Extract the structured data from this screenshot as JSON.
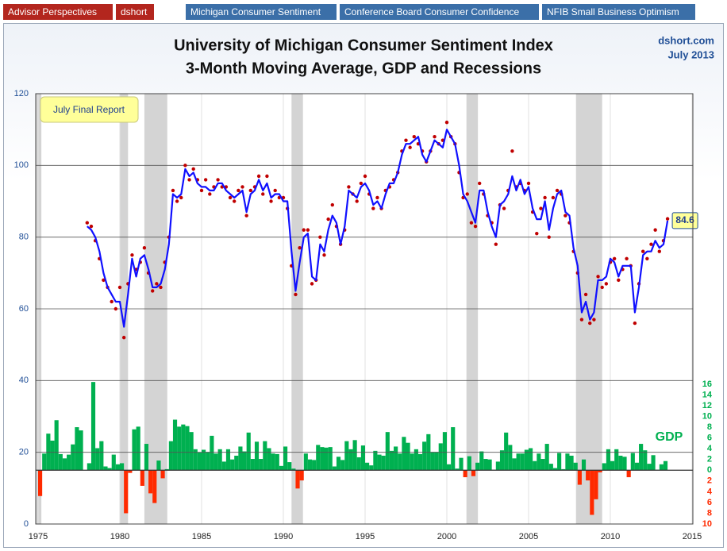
{
  "nav": [
    "Advisor Perspectives",
    "dshort",
    "Michigan Consumer Sentiment",
    "Conference Board Consumer Confidence",
    "NFIB Small Business Optimism"
  ],
  "chart_data": {
    "type": "line",
    "title": "University of Michigan Consumer Sentiment Index",
    "subtitle": "3-Month Moving Average, GDP and Recessions",
    "source": "dshort.com",
    "date": "July 2013",
    "annotation": "July Final Report",
    "xlim": [
      1975,
      2015
    ],
    "xticks": [
      1975,
      1980,
      1985,
      1990,
      1995,
      2000,
      2005,
      2010,
      2015
    ],
    "ylim": [
      0,
      120
    ],
    "yticks": [
      0,
      20,
      40,
      60,
      80,
      100,
      120
    ],
    "y2lim": [
      -10,
      70
    ],
    "y2ticks": [
      16,
      14,
      12,
      10,
      8,
      6,
      4,
      2,
      0,
      {
        "value": -2,
        "label": "2"
      },
      {
        "value": -4,
        "label": "4"
      },
      {
        "value": -6,
        "label": "6"
      },
      {
        "value": -8,
        "label": "8"
      },
      {
        "value": -10,
        "label": "10"
      }
    ],
    "grid": true,
    "recessions": [
      [
        1973.9,
        1975.2
      ],
      [
        1980.0,
        1980.5
      ],
      [
        1981.5,
        1982.9
      ],
      [
        1990.5,
        1991.2
      ],
      [
        2001.2,
        2001.9
      ],
      [
        2007.9,
        2009.5
      ]
    ],
    "recession_color": "#d4d4d4",
    "x": [
      1978,
      1978.25,
      1978.5,
      1978.75,
      1979,
      1979.25,
      1979.5,
      1979.75,
      1980,
      1980.25,
      1980.5,
      1980.75,
      1981,
      1981.25,
      1981.5,
      1981.75,
      1982,
      1982.25,
      1982.5,
      1982.75,
      1983,
      1983.25,
      1983.5,
      1983.75,
      1984,
      1984.25,
      1984.5,
      1984.75,
      1985,
      1985.25,
      1985.5,
      1985.75,
      1986,
      1986.25,
      1986.5,
      1986.75,
      1987,
      1987.25,
      1987.5,
      1987.75,
      1988,
      1988.25,
      1988.5,
      1988.75,
      1989,
      1989.25,
      1989.5,
      1989.75,
      1990,
      1990.25,
      1990.5,
      1990.75,
      1991,
      1991.25,
      1991.5,
      1991.75,
      1992,
      1992.25,
      1992.5,
      1992.75,
      1993,
      1993.25,
      1993.5,
      1993.75,
      1994,
      1994.25,
      1994.5,
      1994.75,
      1995,
      1995.25,
      1995.5,
      1995.75,
      1996,
      1996.25,
      1996.5,
      1996.75,
      1997,
      1997.25,
      1997.5,
      1997.75,
      1998,
      1998.25,
      1998.5,
      1998.75,
      1999,
      1999.25,
      1999.5,
      1999.75,
      2000,
      2000.25,
      2000.5,
      2000.75,
      2001,
      2001.25,
      2001.5,
      2001.75,
      2002,
      2002.25,
      2002.5,
      2002.75,
      2003,
      2003.25,
      2003.5,
      2003.75,
      2004,
      2004.25,
      2004.5,
      2004.75,
      2005,
      2005.25,
      2005.5,
      2005.75,
      2006,
      2006.25,
      2006.5,
      2006.75,
      2007,
      2007.25,
      2007.5,
      2007.75,
      2008,
      2008.25,
      2008.5,
      2008.75,
      2009,
      2009.25,
      2009.5,
      2009.75,
      2010,
      2010.25,
      2010.5,
      2010.75,
      2011,
      2011.25,
      2011.5,
      2011.75,
      2012,
      2012.25,
      2012.5,
      2012.75,
      2013,
      2013.25,
      2013.5
    ],
    "series": [
      {
        "type": "scatter",
        "color": "#c00000",
        "values": [
          84,
          83,
          79,
          74,
          68,
          66,
          62,
          60,
          66,
          52,
          67,
          75,
          71,
          73,
          77,
          70,
          65,
          67,
          66,
          73,
          80,
          93,
          90,
          91,
          100,
          96,
          99,
          96,
          93,
          96,
          92,
          94,
          96,
          94,
          94,
          91,
          90,
          93,
          94,
          86,
          93,
          94,
          97,
          92,
          97,
          90,
          93,
          91,
          91,
          88,
          72,
          64,
          77,
          82,
          82,
          67,
          68,
          80,
          75,
          85,
          89,
          83,
          78,
          82,
          94,
          92,
          90,
          95,
          97,
          92,
          88,
          91,
          88,
          93,
          94,
          96,
          98,
          104,
          107,
          105,
          108,
          106,
          104,
          101,
          104,
          108,
          106,
          107,
          112,
          108,
          106,
          98,
          91,
          92,
          84,
          83,
          95,
          92,
          86,
          84,
          78,
          89,
          88,
          93,
          104,
          94,
          95,
          93,
          95,
          87,
          81,
          88,
          91,
          80,
          91,
          93,
          92,
          86,
          84,
          76,
          70,
          57,
          64,
          56,
          57,
          69,
          66,
          67,
          73,
          74,
          68,
          71,
          74,
          72,
          56,
          67,
          76,
          74,
          78,
          82,
          76,
          79,
          85.1
        ]
      },
      {
        "type": "line",
        "color": "#1010ff",
        "values": [
          83,
          82,
          80,
          76,
          70,
          66,
          64,
          62,
          62,
          55,
          64,
          74,
          69,
          74,
          75,
          71,
          66,
          66,
          67,
          71,
          78,
          92,
          91,
          92,
          99,
          97,
          98,
          95,
          94,
          94,
          93,
          93,
          95,
          95,
          93,
          92,
          91,
          92,
          93,
          87,
          92,
          93,
          96,
          93,
          95,
          91,
          92,
          92,
          90,
          90,
          76,
          65,
          73,
          80,
          81,
          69,
          68,
          78,
          76,
          82,
          86,
          84,
          78,
          83,
          93,
          92,
          91,
          94,
          95,
          93,
          89,
          90,
          88,
          92,
          95,
          95,
          98,
          103,
          106,
          106,
          107,
          108,
          103,
          101,
          104,
          107,
          106,
          105,
          110,
          108,
          106,
          100,
          92,
          90,
          87,
          84,
          93,
          93,
          87,
          83,
          80,
          89,
          90,
          92,
          97,
          93,
          96,
          92,
          94,
          88,
          85,
          85,
          90,
          82,
          88,
          92,
          93,
          87,
          86,
          77,
          72,
          59,
          62,
          57,
          59,
          68,
          68,
          69,
          74,
          73,
          69,
          72,
          72,
          72,
          59,
          66,
          75,
          76,
          76,
          79,
          77,
          78,
          84.6
        ]
      },
      {
        "type": "bar",
        "axis": "y2",
        "name": "GDP",
        "color": "#00b050",
        "negative_color": "#ff2a00",
        "x": [
          1975,
          1975.25,
          1975.5,
          1975.75,
          1976,
          1976.25,
          1976.5,
          1976.75,
          1977,
          1977.25,
          1977.5,
          1977.75,
          1978,
          1978.25,
          1978.5,
          1978.75,
          1979,
          1979.25,
          1979.5,
          1979.75,
          1980,
          1980.25,
          1980.5,
          1980.75,
          1981,
          1981.25,
          1981.5,
          1981.75,
          1982,
          1982.25,
          1982.5,
          1982.75,
          1983,
          1983.25,
          1983.5,
          1983.75,
          1984,
          1984.25,
          1984.5,
          1984.75,
          1985,
          1985.25,
          1985.5,
          1985.75,
          1986,
          1986.25,
          1986.5,
          1986.75,
          1987,
          1987.25,
          1987.5,
          1987.75,
          1988,
          1988.25,
          1988.5,
          1988.75,
          1989,
          1989.25,
          1989.5,
          1989.75,
          1990,
          1990.25,
          1990.5,
          1990.75,
          1991,
          1991.25,
          1991.5,
          1991.75,
          1992,
          1992.25,
          1992.5,
          1992.75,
          1993,
          1993.25,
          1993.5,
          1993.75,
          1994,
          1994.25,
          1994.5,
          1994.75,
          1995,
          1995.25,
          1995.5,
          1995.75,
          1996,
          1996.25,
          1996.5,
          1996.75,
          1997,
          1997.25,
          1997.5,
          1997.75,
          1998,
          1998.25,
          1998.5,
          1998.75,
          1999,
          1999.25,
          1999.5,
          1999.75,
          2000,
          2000.25,
          2000.5,
          2000.75,
          2001,
          2001.25,
          2001.5,
          2001.75,
          2002,
          2002.25,
          2002.5,
          2002.75,
          2003,
          2003.25,
          2003.5,
          2003.75,
          2004,
          2004.25,
          2004.5,
          2004.75,
          2005,
          2005.25,
          2005.5,
          2005.75,
          2006,
          2006.25,
          2006.5,
          2006.75,
          2007,
          2007.25,
          2007.5,
          2007.75,
          2008,
          2008.25,
          2008.5,
          2008.75,
          2009,
          2009.25,
          2009.5,
          2009.75,
          2010,
          2010.25,
          2010.5,
          2010.75,
          2011,
          2011.25,
          2011.5,
          2011.75,
          2012,
          2012.25,
          2012.5,
          2012.75,
          2013,
          2013.25
        ],
        "values": [
          -4.8,
          3.1,
          6.8,
          5.5,
          9.3,
          3.0,
          2.2,
          2.9,
          4.8,
          8.0,
          7.4,
          0.0,
          1.3,
          16.4,
          4.1,
          5.4,
          0.7,
          0.4,
          2.9,
          1.1,
          1.3,
          -8.0,
          -0.5,
          7.6,
          8.1,
          -2.9,
          4.9,
          -4.3,
          -6.1,
          1.8,
          -1.5,
          0.2,
          5.4,
          9.4,
          8.1,
          8.5,
          8.2,
          7.1,
          3.9,
          3.3,
          3.8,
          3.4,
          6.4,
          3.1,
          3.9,
          1.6,
          3.9,
          2.0,
          2.7,
          4.4,
          3.5,
          7.0,
          2.1,
          5.3,
          2.1,
          5.4,
          4.1,
          3.1,
          3.0,
          0.8,
          4.4,
          1.5,
          0.3,
          -3.4,
          -1.9,
          3.1,
          2.0,
          1.9,
          4.7,
          4.3,
          4.2,
          4.3,
          0.7,
          2.5,
          1.9,
          5.4,
          3.9,
          5.6,
          2.4,
          4.6,
          1.4,
          0.9,
          3.6,
          2.9,
          2.7,
          7.1,
          3.6,
          4.4,
          3.1,
          6.2,
          5.1,
          3.1,
          3.9,
          3.0,
          5.3,
          6.7,
          3.4,
          3.4,
          5.0,
          7.1,
          1.1,
          8.0,
          0.3,
          2.3,
          -1.3,
          2.6,
          -1.1,
          1.4,
          3.5,
          2.1,
          2.0,
          0.1,
          1.6,
          3.7,
          7.0,
          4.7,
          2.2,
          3.1,
          3.1,
          3.8,
          4.1,
          1.7,
          3.1,
          2.1,
          4.9,
          1.2,
          0.4,
          3.2,
          0.2,
          3.1,
          2.7,
          1.4,
          -2.7,
          2.0,
          -1.9,
          -8.3,
          -5.4,
          -0.4,
          1.3,
          3.9,
          1.7,
          3.9,
          2.7,
          2.5,
          -1.3,
          3.2,
          1.4,
          4.9,
          3.7,
          1.2,
          2.8,
          0.1,
          1.1,
          1.7
        ]
      }
    ]
  }
}
